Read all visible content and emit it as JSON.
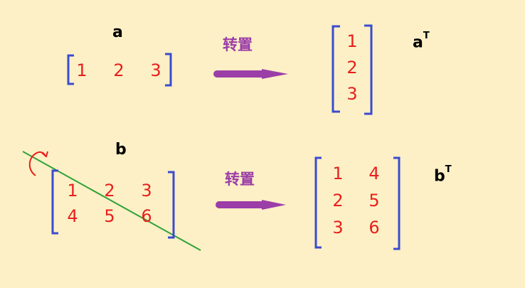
{
  "colors": {
    "background": "#fdf0c6",
    "bracket": "#3b4bd0",
    "number": "#e8201c",
    "arrow": "#9b3ea8",
    "diagonal": "#2fa33a"
  },
  "top": {
    "label": "a",
    "matrix": [
      [
        "1",
        "2",
        "3"
      ]
    ],
    "arrow_text": "转置",
    "result_label": "a",
    "result_sup": "T",
    "result": [
      [
        "1"
      ],
      [
        "2"
      ],
      [
        "3"
      ]
    ]
  },
  "bottom": {
    "label": "b",
    "matrix": [
      [
        "1",
        "2",
        "3"
      ],
      [
        "4",
        "5",
        "6"
      ]
    ],
    "arrow_text": "转置",
    "result_label": "b",
    "result_sup": "T",
    "result": [
      [
        "1",
        "4"
      ],
      [
        "2",
        "5"
      ],
      [
        "3",
        "6"
      ]
    ]
  }
}
